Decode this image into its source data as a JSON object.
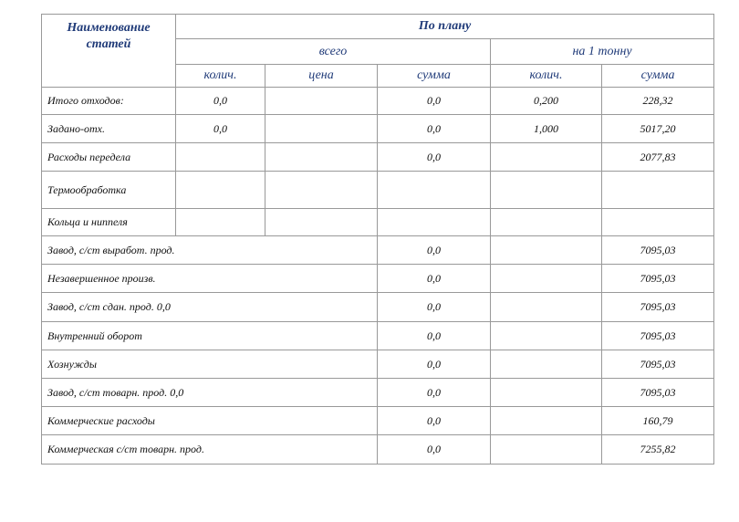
{
  "header": {
    "name": "Наименование статей",
    "plan": "По плану",
    "total": "всего",
    "per_ton": "на 1 тонну",
    "columns": [
      "колич.",
      "цена",
      "сумма",
      "колич.",
      "сумма"
    ]
  },
  "rows": [
    {
      "label": "Итого отходов:",
      "cells": [
        "0,0",
        null,
        "0,0",
        "0,200",
        "228,32"
      ]
    },
    {
      "label": "Задано-отх.",
      "cells": [
        "0,0",
        null,
        "0,0",
        "1,000",
        "5017,20"
      ]
    },
    {
      "label": "Расходы передела",
      "cells": [
        null,
        null,
        "0,0",
        null,
        "2077,83"
      ]
    },
    {
      "label": "Термообработка",
      "cells": [
        null,
        null,
        null,
        null,
        null
      ]
    },
    {
      "label": "Кольца и ниппеля",
      "cells": [
        null,
        null,
        null,
        null,
        null
      ]
    },
    {
      "label": "Завод, с/ст выработ. прод.",
      "cells": [
        "0,0",
        null,
        "7095,03"
      ]
    },
    {
      "label": "Незавершенное произв.",
      "cells": [
        "0,0",
        null,
        "7095,03"
      ]
    },
    {
      "label": "Завод, с/ст сдан. прод. 0,0",
      "cells": [
        "0,0",
        null,
        "7095,03"
      ]
    },
    {
      "label": "Внутренний оборот",
      "cells": [
        "0,0",
        null,
        "7095,03"
      ]
    },
    {
      "label": "Хознужды",
      "cells": [
        "0,0",
        null,
        "7095,03"
      ]
    },
    {
      "label": "Завод, с/ст товарн. прод. 0,0",
      "cells": [
        "0,0",
        null,
        "7095,03"
      ]
    },
    {
      "label": "Коммерческие расходы",
      "cells": [
        "0,0",
        null,
        "160,79"
      ]
    },
    {
      "label": "Коммерческая с/ст товарн. прод.",
      "cells": [
        "0,0",
        null,
        "7255,82"
      ]
    }
  ]
}
